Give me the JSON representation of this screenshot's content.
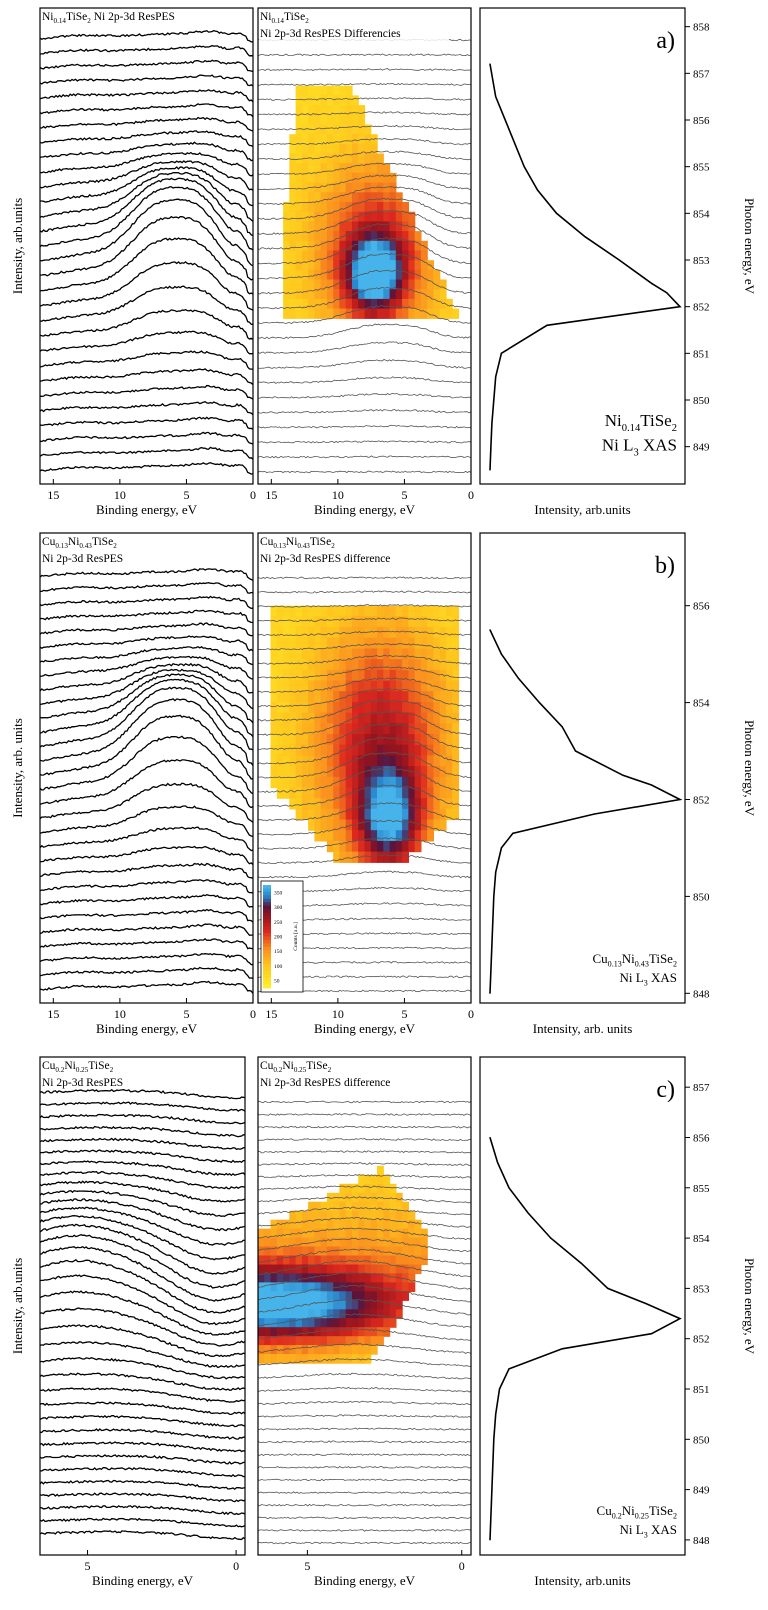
{
  "figure": {
    "panels": [
      {
        "id": "a",
        "letter": "a)",
        "pes": {
          "title_lines": [
            [
              [
                "Ni",
                ""
              ],
              [
                "0.14",
                "sub"
              ],
              [
                "TiSe",
                ""
              ],
              [
                "2",
                "sub"
              ],
              [
                " Ni 2p-3d ResPES",
                ""
              ]
            ]
          ],
          "ylabel": "Intensity, arb.units",
          "xlabel": "Binding energy, eV",
          "xticks": [
            15,
            10,
            5,
            0
          ],
          "xlim": [
            16,
            0
          ]
        },
        "diff": {
          "title_lines": [
            [
              [
                "Ni",
                ""
              ],
              [
                "0.14",
                "sub"
              ],
              [
                "TiSe",
                ""
              ],
              [
                "2",
                "sub"
              ]
            ],
            [
              [
                "Ni 2p-3d ResPES Differencies",
                ""
              ]
            ]
          ],
          "xlabel": "Binding energy, eV",
          "xticks": [
            15,
            10,
            5,
            0
          ],
          "xlim": [
            16,
            0
          ]
        },
        "xas": {
          "xlabel": "Intensity, arb.units",
          "ylabel": "Photon energy, eV",
          "yticks": [
            849,
            850,
            851,
            852,
            853,
            854,
            855,
            856,
            857,
            858
          ],
          "ylim": [
            848.2,
            858.4
          ],
          "label_lines": [
            [
              [
                "Ni",
                ""
              ],
              [
                "0.14",
                "sub"
              ],
              [
                "TiSe",
                ""
              ],
              [
                "2",
                "sub"
              ]
            ],
            [
              [
                "Ni L",
                ""
              ],
              [
                "3",
                "sub"
              ],
              [
                " XAS",
                ""
              ]
            ]
          ]
        }
      },
      {
        "id": "b",
        "letter": "b)",
        "pes": {
          "title_lines": [
            [
              [
                "Cu",
                ""
              ],
              [
                "0.13",
                "sub"
              ],
              [
                "Ni",
                ""
              ],
              [
                "0.43",
                "sub"
              ],
              [
                "TiSe",
                ""
              ],
              [
                "2",
                "sub"
              ]
            ],
            [
              [
                "Ni 2p-3d ResPES",
                ""
              ]
            ]
          ],
          "ylabel": "Intensity, arb. units",
          "xlabel": "Binding energy, eV",
          "xticks": [
            15,
            10,
            5,
            0
          ],
          "xlim": [
            16,
            0
          ]
        },
        "diff": {
          "title_lines": [
            [
              [
                "Cu",
                ""
              ],
              [
                "0.13",
                "sub"
              ],
              [
                "Ni",
                ""
              ],
              [
                "0.43",
                "sub"
              ],
              [
                "TiSe",
                ""
              ],
              [
                "2",
                "sub"
              ]
            ],
            [
              [
                "Ni 2p-3d ResPES difference",
                ""
              ]
            ]
          ],
          "xlabel": "Binding energy, eV",
          "xticks": [
            15,
            10,
            5,
            0
          ],
          "xlim": [
            16,
            0
          ],
          "colorbar": {
            "title": "Counts [a.u.]",
            "ticks": [
              50,
              100,
              150,
              200,
              250,
              300,
              350
            ]
          }
        },
        "xas": {
          "xlabel": "Intensity, arb. units",
          "ylabel": "Photon energy, eV",
          "yticks": [
            848,
            850,
            852,
            854,
            856
          ],
          "ylim": [
            847.8,
            857.5
          ],
          "label_lines": [
            [
              [
                "Cu",
                ""
              ],
              [
                "0.13",
                "sub"
              ],
              [
                "Ni",
                ""
              ],
              [
                "0.43",
                "sub"
              ],
              [
                "TiSe",
                ""
              ],
              [
                "2",
                "sub"
              ]
            ],
            [
              [
                "Ni L",
                ""
              ],
              [
                "3",
                "sub"
              ],
              [
                " XAS",
                ""
              ]
            ]
          ]
        }
      },
      {
        "id": "c",
        "letter": "c)",
        "pes": {
          "title_lines": [
            [
              [
                "Cu",
                ""
              ],
              [
                "0.2",
                "sub"
              ],
              [
                "Ni",
                ""
              ],
              [
                "0.25",
                "sub"
              ],
              [
                "TiSe",
                ""
              ],
              [
                "2",
                "sub"
              ]
            ],
            [
              [
                "Ni 2p-3d ResPES",
                ""
              ]
            ]
          ],
          "ylabel": "Intensity, arb.units",
          "xlabel": "Binding energy, eV",
          "xticks": [
            5,
            0
          ],
          "xlim": [
            6.6,
            -0.3
          ]
        },
        "diff": {
          "title_lines": [
            [
              [
                "Cu",
                ""
              ],
              [
                "0.2",
                "sub"
              ],
              [
                "Ni",
                ""
              ],
              [
                "0.25",
                "sub"
              ],
              [
                "TiSe",
                ""
              ],
              [
                "2",
                "sub"
              ]
            ],
            [
              [
                "Ni 2p-3d ResPES difference",
                ""
              ]
            ]
          ],
          "xlabel": "Binding energy, eV",
          "xticks": [
            5,
            0
          ],
          "xlim": [
            6.6,
            -0.3
          ]
        },
        "xas": {
          "xlabel": "Intensity, arb.units",
          "ylabel": "Photon energy, eV",
          "yticks": [
            848,
            849,
            850,
            851,
            852,
            853,
            854,
            855,
            856,
            857
          ],
          "ylim": [
            847.7,
            857.6
          ],
          "label_lines": [
            [
              [
                "Cu",
                ""
              ],
              [
                "0.2",
                "sub"
              ],
              [
                "Ni",
                ""
              ],
              [
                "0.25",
                "sub"
              ],
              [
                "TiSe",
                ""
              ],
              [
                "2",
                "sub"
              ]
            ],
            [
              [
                "Ni L",
                ""
              ],
              [
                "3",
                "sub"
              ],
              [
                " XAS",
                ""
              ]
            ]
          ]
        }
      }
    ]
  },
  "chart_data": [
    {
      "panel": "a",
      "type": "line",
      "x": [
        857.2,
        856.5,
        855.8,
        855.0,
        854.5,
        854.0,
        853.5,
        853.0,
        852.5,
        852.3,
        852.0,
        851.6,
        851.0,
        850.5,
        850.0,
        849.5,
        849.0,
        848.5
      ],
      "series": [
        {
          "values": [
            0.0,
            0.03,
            0.1,
            0.18,
            0.25,
            0.35,
            0.5,
            0.68,
            0.85,
            0.93,
            1.0,
            0.3,
            0.06,
            0.03,
            0.02,
            0.01,
            0.005,
            0.0
          ]
        }
      ],
      "ylim": [
        848.2,
        858.4
      ]
    },
    {
      "panel": "b",
      "type": "line",
      "x": [
        855.5,
        855.0,
        854.5,
        854.0,
        853.5,
        853.0,
        852.5,
        852.3,
        852.0,
        851.7,
        851.3,
        851.0,
        850.5,
        850.0,
        849.0,
        848.0
      ],
      "series": [
        {
          "values": [
            0.0,
            0.06,
            0.15,
            0.26,
            0.38,
            0.45,
            0.7,
            0.85,
            1.0,
            0.55,
            0.12,
            0.06,
            0.03,
            0.02,
            0.01,
            0.0
          ]
        }
      ],
      "ylim": [
        847.8,
        857.5
      ]
    },
    {
      "panel": "c",
      "type": "line",
      "x": [
        856.0,
        855.5,
        855.0,
        854.5,
        854.0,
        853.5,
        853.0,
        852.7,
        852.4,
        852.1,
        851.8,
        851.4,
        851.0,
        850.5,
        850.0,
        849.0,
        848.0
      ],
      "series": [
        {
          "values": [
            0.0,
            0.04,
            0.1,
            0.2,
            0.32,
            0.48,
            0.62,
            0.82,
            1.0,
            0.85,
            0.38,
            0.1,
            0.05,
            0.03,
            0.02,
            0.01,
            0.0
          ]
        }
      ],
      "ylim": [
        847.7,
        857.6
      ]
    }
  ]
}
